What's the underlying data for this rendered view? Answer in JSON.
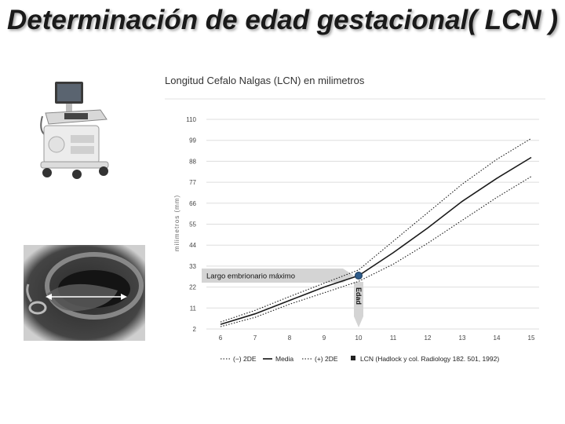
{
  "slide": {
    "title": "Determinación de edad gestacional( LCN )"
  },
  "images": {
    "ultrasound_machine": "ultrasound-machine-icon",
    "ultrasound_scan": "ultrasound-scan-image"
  },
  "chart_data": {
    "type": "line",
    "title": "Longitud Cefalo Nalgas (LCN) en milimetros",
    "ylabel": "milimetros (mm)",
    "xlabel": "",
    "x": [
      6,
      7,
      8,
      9,
      10,
      11,
      12,
      13,
      14,
      15
    ],
    "y_ticks": [
      2,
      11,
      22,
      33,
      44,
      55,
      66,
      77,
      88,
      99,
      110
    ],
    "xlim": [
      6,
      15
    ],
    "ylim": [
      2,
      110
    ],
    "grid": "horizontal",
    "legend_position": "bottom",
    "series": [
      {
        "name": "(−) 2DE",
        "style": "dotted",
        "values": [
          3,
          7,
          13,
          19,
          25,
          34,
          45,
          57,
          69,
          80
        ]
      },
      {
        "name": "Media",
        "style": "solid",
        "values": [
          4,
          8.5,
          15,
          22,
          28,
          40,
          53,
          67,
          79,
          90
        ]
      },
      {
        "name": "(+) 2DE",
        "style": "dotted",
        "values": [
          5,
          10,
          17,
          24,
          31,
          46,
          61,
          76,
          89,
          100
        ]
      }
    ],
    "marker": {
      "name": "LCN (Hadlock y col. Radiology 182. 501, 1992)",
      "x": 10,
      "y": 28
    },
    "annotations": {
      "horizontal": "Largo embrionario máximo",
      "vertical": "Edad"
    },
    "colors": {
      "line": "#1a1a1a",
      "grid": "#dddddd",
      "marker": "#2e5c8a",
      "arrow": "#d4d4d4"
    }
  }
}
